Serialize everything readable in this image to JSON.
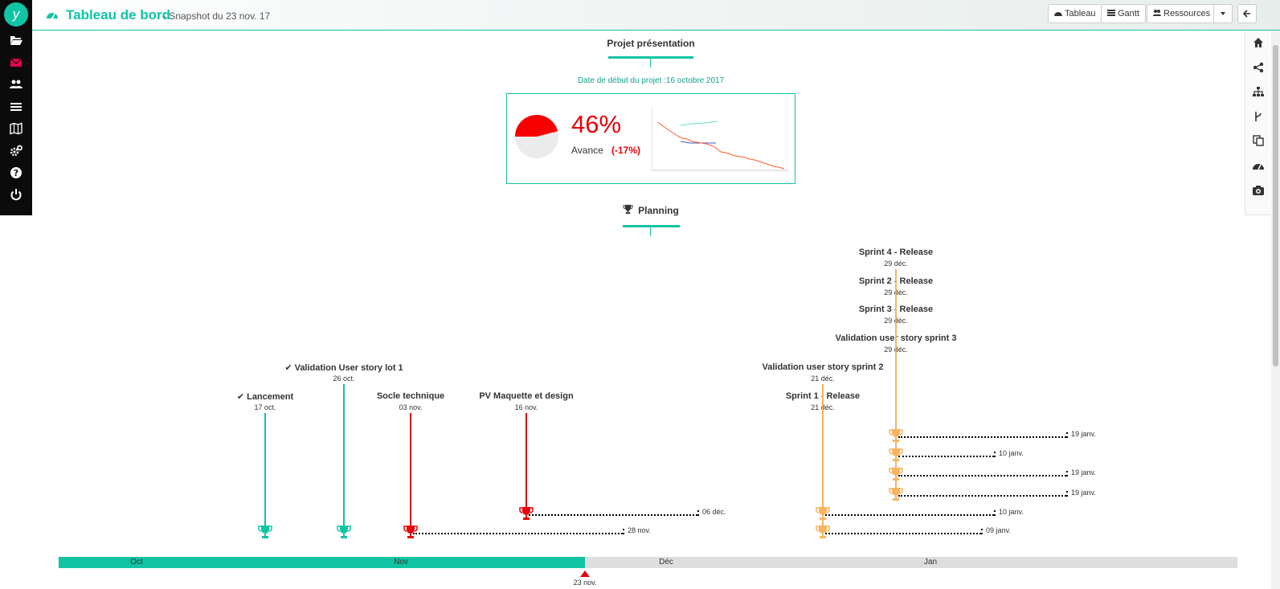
{
  "sidebar": {
    "logo_text": "y",
    "items": [
      {
        "icon": "folder-open-icon"
      },
      {
        "icon": "envelope-icon",
        "color": "#e8004e"
      },
      {
        "icon": "users-icon"
      },
      {
        "icon": "list-icon"
      },
      {
        "icon": "map-icon"
      },
      {
        "icon": "cogs-icon"
      },
      {
        "icon": "help-icon"
      },
      {
        "icon": "power-icon"
      }
    ]
  },
  "header": {
    "title": "Tableau de bord",
    "subtitle": "- Snapshot du 23 nov. 17",
    "buttons": {
      "tableau": "Tableau",
      "gantt": "Gantt",
      "ressources": "Ressources"
    }
  },
  "right_toolbar": [
    "home-icon",
    "share-icon",
    "sitemap-icon",
    "branch-icon",
    "copy-icon",
    "dashboard-icon",
    "camera-icon"
  ],
  "project": {
    "title": "Projet présentation",
    "start_date": "Date de début du projet :16 octobre 2017",
    "progress_pct": "46%",
    "progress_value": 0.46,
    "progress_label": "Avance",
    "progress_delta": "(-17%)"
  },
  "planning": {
    "title": "Planning",
    "milestones": [
      {
        "title": "✔ Lancement",
        "date": "17 oct.",
        "color": "#11c4a3"
      },
      {
        "title": "✔ Validation User story lot 1",
        "date": "26 oct.",
        "color": "#11c4a3"
      },
      {
        "title": "Socle technique",
        "date": "03 nov.",
        "color": "#e8000b",
        "extension": "28 nov."
      },
      {
        "title": "PV Maquette et design",
        "date": "16 nov.",
        "color": "#e8000b",
        "extension": "06 déc."
      },
      {
        "title": "Sprint 1 - Release",
        "date": "21 déc.",
        "color": "#f8b460",
        "extension": "09 janv."
      },
      {
        "title": "Validation user story sprint 2",
        "date": "21 déc.",
        "color": "#f8b460",
        "extension": "10 janv."
      },
      {
        "title": "Validation user story sprint 3",
        "date": "29 déc.",
        "color": "#f8b460",
        "extension": "19 janv."
      },
      {
        "title": "Sprint 3 - Release",
        "date": "29 déc.",
        "color": "#f8b460",
        "extension": "19 janv."
      },
      {
        "title": "Sprint 2 - Release",
        "date": "29 déc.",
        "color": "#f8b460",
        "extension": "10 janv."
      },
      {
        "title": "Sprint 4 - Release",
        "date": "29 déc.",
        "color": "#f8b460",
        "extension": "19 janv."
      }
    ],
    "months": [
      "Oct",
      "Nov",
      "Déc",
      "Jan"
    ],
    "today": "23 nov."
  },
  "colors": {
    "accent": "#11c4a3",
    "late": "#e8000b",
    "future": "#f8b460"
  }
}
